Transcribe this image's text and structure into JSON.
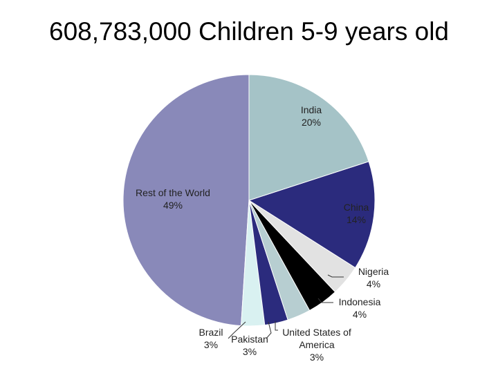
{
  "chart_data": {
    "type": "pie",
    "title": "608,783,000 Children 5-9 years old",
    "categories": [
      "India",
      "China",
      "Nigeria",
      "Indonesia",
      "United States of America",
      "Pakistan",
      "Brazil",
      "Rest of the World"
    ],
    "values": [
      20,
      14,
      4,
      4,
      3,
      3,
      3,
      49
    ],
    "value_labels": [
      "20%",
      "14%",
      "4%",
      "4%",
      "3%",
      "3%",
      "3%",
      "49%"
    ],
    "colors": [
      "#a5c3c7",
      "#2b2b7d",
      "#e2e2e2",
      "#000000",
      "#b7ced1",
      "#2b2b7d",
      "#d9f1f1",
      "#8989b9"
    ]
  }
}
